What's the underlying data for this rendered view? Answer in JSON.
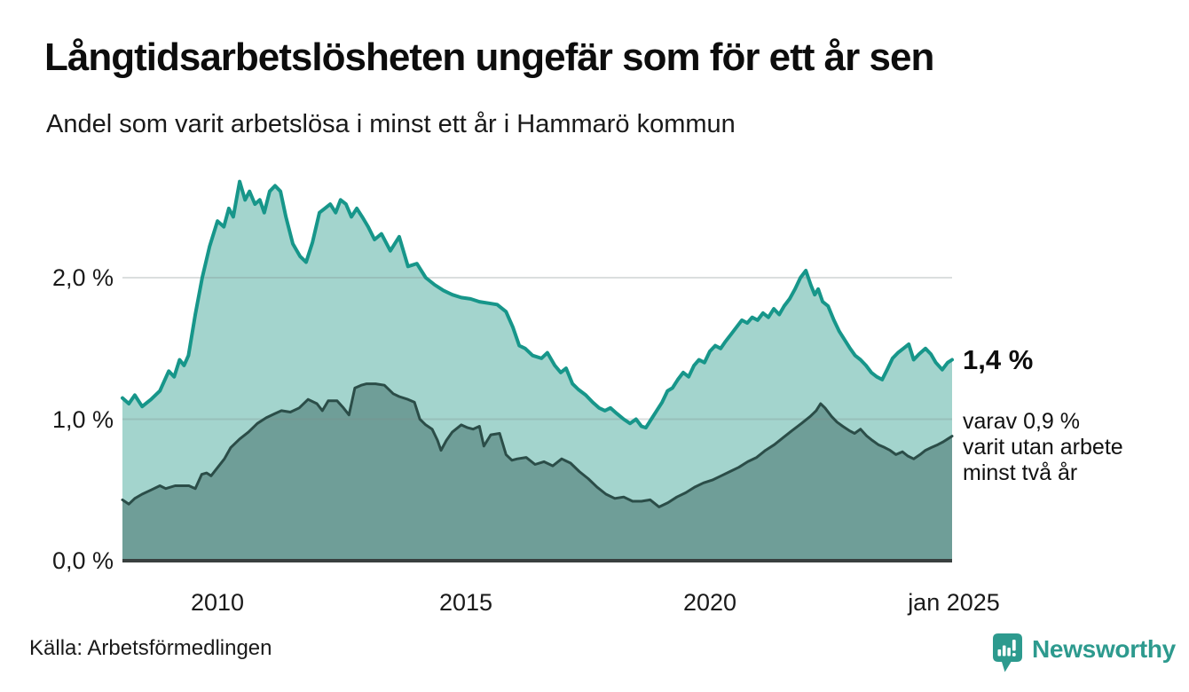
{
  "header": {
    "title": "Långtidsarbetslösheten ungefär som för ett år sen",
    "subtitle": "Andel som varit arbetslösa i minst ett år i Hammarö kommun"
  },
  "footer": {
    "source": "Källa: Arbetsförmedlingen",
    "brand": "Newsworthy"
  },
  "colors": {
    "series1_line": "#17968a",
    "series1_fill": "#a3d4cd",
    "series2_line": "#2b4d48",
    "series2_fill": "#6f9e98",
    "axis_line": "#39403f",
    "gridline": "#e3e3e3",
    "brand_teal": "#2d9a8e",
    "text": "#111111"
  },
  "chart_data": {
    "type": "area",
    "title": "Långtidsarbetslösheten ungefär som för ett år sen",
    "subtitle": "Andel som varit arbetslösa i minst ett år i Hammarö kommun",
    "unit": "%",
    "xlabel": "",
    "ylabel": "",
    "grid": "horizontal",
    "xlim": [
      2008.07,
      2024.92
    ],
    "ylim": [
      0,
      2.74
    ],
    "yticks": [
      {
        "value": 0,
        "label": "0,0 %"
      },
      {
        "value": 1,
        "label": "1,0 %"
      },
      {
        "value": 2,
        "label": "2,0 %"
      }
    ],
    "xticks": [
      {
        "year": 2010,
        "label": "2010"
      },
      {
        "year": 2015,
        "label": "2015"
      },
      {
        "year": 2020,
        "label": "2020"
      },
      {
        "year": 2025,
        "label": "jan 2025"
      }
    ],
    "annotations": {
      "latest_value": "1,4 %",
      "secondary_line1": "varav 0,9 %",
      "secondary_line2": "varit utan arbete",
      "secondary_line3": "minst två år"
    },
    "series": [
      {
        "name": "Andel arbetslösa minst ett år",
        "latest_value_pct": 1.4,
        "line_color": "#17968a",
        "fill_color": "#a3d4cd",
        "points": [
          [
            2008.07,
            1.15
          ],
          [
            2008.2,
            1.11
          ],
          [
            2008.32,
            1.17
          ],
          [
            2008.47,
            1.09
          ],
          [
            2008.65,
            1.14
          ],
          [
            2008.83,
            1.2
          ],
          [
            2009.01,
            1.34
          ],
          [
            2009.12,
            1.3
          ],
          [
            2009.23,
            1.42
          ],
          [
            2009.32,
            1.38
          ],
          [
            2009.41,
            1.45
          ],
          [
            2009.55,
            1.74
          ],
          [
            2009.69,
            2.0
          ],
          [
            2009.84,
            2.22
          ],
          [
            2010.0,
            2.4
          ],
          [
            2010.13,
            2.36
          ],
          [
            2010.23,
            2.49
          ],
          [
            2010.32,
            2.43
          ],
          [
            2010.45,
            2.68
          ],
          [
            2010.56,
            2.55
          ],
          [
            2010.65,
            2.61
          ],
          [
            2010.76,
            2.52
          ],
          [
            2010.86,
            2.55
          ],
          [
            2010.95,
            2.46
          ],
          [
            2011.06,
            2.61
          ],
          [
            2011.17,
            2.65
          ],
          [
            2011.28,
            2.61
          ],
          [
            2011.39,
            2.43
          ],
          [
            2011.53,
            2.24
          ],
          [
            2011.68,
            2.15
          ],
          [
            2011.8,
            2.11
          ],
          [
            2011.93,
            2.25
          ],
          [
            2012.07,
            2.46
          ],
          [
            2012.18,
            2.49
          ],
          [
            2012.29,
            2.52
          ],
          [
            2012.4,
            2.46
          ],
          [
            2012.5,
            2.55
          ],
          [
            2012.61,
            2.52
          ],
          [
            2012.72,
            2.43
          ],
          [
            2012.83,
            2.49
          ],
          [
            2012.94,
            2.43
          ],
          [
            2013.06,
            2.36
          ],
          [
            2013.19,
            2.27
          ],
          [
            2013.33,
            2.31
          ],
          [
            2013.51,
            2.19
          ],
          [
            2013.69,
            2.29
          ],
          [
            2013.87,
            2.08
          ],
          [
            2014.05,
            2.1
          ],
          [
            2014.23,
            2.0
          ],
          [
            2014.41,
            1.95
          ],
          [
            2014.59,
            1.91
          ],
          [
            2014.77,
            1.88
          ],
          [
            2014.95,
            1.86
          ],
          [
            2015.14,
            1.85
          ],
          [
            2015.32,
            1.83
          ],
          [
            2015.5,
            1.82
          ],
          [
            2015.68,
            1.81
          ],
          [
            2015.86,
            1.76
          ],
          [
            2016.0,
            1.65
          ],
          [
            2016.13,
            1.52
          ],
          [
            2016.25,
            1.5
          ],
          [
            2016.4,
            1.45
          ],
          [
            2016.58,
            1.43
          ],
          [
            2016.7,
            1.47
          ],
          [
            2016.85,
            1.38
          ],
          [
            2016.97,
            1.33
          ],
          [
            2017.08,
            1.36
          ],
          [
            2017.21,
            1.25
          ],
          [
            2017.33,
            1.21
          ],
          [
            2017.48,
            1.17
          ],
          [
            2017.62,
            1.12
          ],
          [
            2017.75,
            1.08
          ],
          [
            2017.87,
            1.06
          ],
          [
            2017.98,
            1.08
          ],
          [
            2018.11,
            1.04
          ],
          [
            2018.25,
            1.0
          ],
          [
            2018.38,
            0.97
          ],
          [
            2018.5,
            1.0
          ],
          [
            2018.61,
            0.95
          ],
          [
            2018.7,
            0.94
          ],
          [
            2018.81,
            1.0
          ],
          [
            2018.92,
            1.06
          ],
          [
            2019.03,
            1.12
          ],
          [
            2019.14,
            1.2
          ],
          [
            2019.24,
            1.22
          ],
          [
            2019.35,
            1.28
          ],
          [
            2019.46,
            1.33
          ],
          [
            2019.57,
            1.3
          ],
          [
            2019.68,
            1.38
          ],
          [
            2019.78,
            1.42
          ],
          [
            2019.89,
            1.4
          ],
          [
            2020.0,
            1.48
          ],
          [
            2020.11,
            1.52
          ],
          [
            2020.22,
            1.5
          ],
          [
            2020.32,
            1.55
          ],
          [
            2020.43,
            1.6
          ],
          [
            2020.54,
            1.65
          ],
          [
            2020.65,
            1.7
          ],
          [
            2020.76,
            1.68
          ],
          [
            2020.86,
            1.72
          ],
          [
            2020.97,
            1.7
          ],
          [
            2021.08,
            1.75
          ],
          [
            2021.19,
            1.72
          ],
          [
            2021.3,
            1.78
          ],
          [
            2021.41,
            1.74
          ],
          [
            2021.51,
            1.8
          ],
          [
            2021.62,
            1.85
          ],
          [
            2021.73,
            1.92
          ],
          [
            2021.84,
            2.0
          ],
          [
            2021.95,
            2.05
          ],
          [
            2022.05,
            1.95
          ],
          [
            2022.13,
            1.88
          ],
          [
            2022.2,
            1.92
          ],
          [
            2022.29,
            1.83
          ],
          [
            2022.4,
            1.8
          ],
          [
            2022.52,
            1.7
          ],
          [
            2022.63,
            1.62
          ],
          [
            2022.74,
            1.56
          ],
          [
            2022.85,
            1.5
          ],
          [
            2022.95,
            1.45
          ],
          [
            2023.06,
            1.42
          ],
          [
            2023.17,
            1.38
          ],
          [
            2023.28,
            1.33
          ],
          [
            2023.39,
            1.3
          ],
          [
            2023.5,
            1.28
          ],
          [
            2023.6,
            1.35
          ],
          [
            2023.71,
            1.43
          ],
          [
            2023.82,
            1.47
          ],
          [
            2023.93,
            1.5
          ],
          [
            2024.04,
            1.53
          ],
          [
            2024.14,
            1.42
          ],
          [
            2024.25,
            1.46
          ],
          [
            2024.38,
            1.5
          ],
          [
            2024.49,
            1.46
          ],
          [
            2024.59,
            1.4
          ],
          [
            2024.72,
            1.35
          ],
          [
            2024.83,
            1.4
          ],
          [
            2024.92,
            1.42
          ]
        ]
      },
      {
        "name": "Andel utan arbete minst två år",
        "latest_value_pct": 0.9,
        "line_color": "#2b4d48",
        "fill_color": "#6f9e98",
        "points": [
          [
            2008.07,
            0.43
          ],
          [
            2008.2,
            0.4
          ],
          [
            2008.32,
            0.44
          ],
          [
            2008.47,
            0.47
          ],
          [
            2008.65,
            0.5
          ],
          [
            2008.83,
            0.53
          ],
          [
            2008.95,
            0.51
          ],
          [
            2009.14,
            0.53
          ],
          [
            2009.32,
            0.53
          ],
          [
            2009.42,
            0.53
          ],
          [
            2009.55,
            0.51
          ],
          [
            2009.68,
            0.61
          ],
          [
            2009.78,
            0.62
          ],
          [
            2009.87,
            0.6
          ],
          [
            2009.96,
            0.64
          ],
          [
            2010.14,
            0.72
          ],
          [
            2010.27,
            0.8
          ],
          [
            2010.45,
            0.86
          ],
          [
            2010.63,
            0.91
          ],
          [
            2010.81,
            0.97
          ],
          [
            2010.99,
            1.01
          ],
          [
            2011.17,
            1.04
          ],
          [
            2011.3,
            1.06
          ],
          [
            2011.48,
            1.05
          ],
          [
            2011.66,
            1.08
          ],
          [
            2011.84,
            1.14
          ],
          [
            2012.02,
            1.11
          ],
          [
            2012.13,
            1.06
          ],
          [
            2012.25,
            1.13
          ],
          [
            2012.43,
            1.13
          ],
          [
            2012.56,
            1.08
          ],
          [
            2012.67,
            1.03
          ],
          [
            2012.79,
            1.22
          ],
          [
            2012.92,
            1.24
          ],
          [
            2013.03,
            1.25
          ],
          [
            2013.21,
            1.25
          ],
          [
            2013.39,
            1.24
          ],
          [
            2013.57,
            1.18
          ],
          [
            2013.69,
            1.16
          ],
          [
            2013.87,
            1.14
          ],
          [
            2014.0,
            1.12
          ],
          [
            2014.11,
            1.0
          ],
          [
            2014.23,
            0.96
          ],
          [
            2014.36,
            0.93
          ],
          [
            2014.47,
            0.85
          ],
          [
            2014.54,
            0.78
          ],
          [
            2014.65,
            0.85
          ],
          [
            2014.77,
            0.91
          ],
          [
            2014.95,
            0.96
          ],
          [
            2015.08,
            0.94
          ],
          [
            2015.19,
            0.93
          ],
          [
            2015.32,
            0.95
          ],
          [
            2015.41,
            0.81
          ],
          [
            2015.55,
            0.89
          ],
          [
            2015.73,
            0.9
          ],
          [
            2015.86,
            0.75
          ],
          [
            2015.98,
            0.71
          ],
          [
            2016.09,
            0.72
          ],
          [
            2016.27,
            0.73
          ],
          [
            2016.45,
            0.68
          ],
          [
            2016.63,
            0.7
          ],
          [
            2016.81,
            0.67
          ],
          [
            2016.99,
            0.72
          ],
          [
            2017.17,
            0.69
          ],
          [
            2017.35,
            0.63
          ],
          [
            2017.53,
            0.58
          ],
          [
            2017.71,
            0.52
          ],
          [
            2017.89,
            0.47
          ],
          [
            2018.07,
            0.44
          ],
          [
            2018.25,
            0.45
          ],
          [
            2018.43,
            0.42
          ],
          [
            2018.61,
            0.42
          ],
          [
            2018.79,
            0.43
          ],
          [
            2018.97,
            0.38
          ],
          [
            2019.15,
            0.41
          ],
          [
            2019.33,
            0.45
          ],
          [
            2019.51,
            0.48
          ],
          [
            2019.69,
            0.52
          ],
          [
            2019.87,
            0.55
          ],
          [
            2020.05,
            0.57
          ],
          [
            2020.23,
            0.6
          ],
          [
            2020.41,
            0.63
          ],
          [
            2020.59,
            0.66
          ],
          [
            2020.77,
            0.7
          ],
          [
            2020.95,
            0.73
          ],
          [
            2021.13,
            0.78
          ],
          [
            2021.31,
            0.82
          ],
          [
            2021.49,
            0.87
          ],
          [
            2021.67,
            0.92
          ],
          [
            2021.86,
            0.97
          ],
          [
            2022.04,
            1.02
          ],
          [
            2022.16,
            1.06
          ],
          [
            2022.25,
            1.11
          ],
          [
            2022.34,
            1.08
          ],
          [
            2022.47,
            1.02
          ],
          [
            2022.58,
            0.98
          ],
          [
            2022.7,
            0.95
          ],
          [
            2022.83,
            0.92
          ],
          [
            2022.94,
            0.9
          ],
          [
            2023.06,
            0.93
          ],
          [
            2023.19,
            0.88
          ],
          [
            2023.3,
            0.85
          ],
          [
            2023.42,
            0.82
          ],
          [
            2023.55,
            0.8
          ],
          [
            2023.66,
            0.78
          ],
          [
            2023.78,
            0.75
          ],
          [
            2023.91,
            0.77
          ],
          [
            2024.02,
            0.74
          ],
          [
            2024.14,
            0.72
          ],
          [
            2024.27,
            0.75
          ],
          [
            2024.38,
            0.78
          ],
          [
            2024.5,
            0.8
          ],
          [
            2024.63,
            0.82
          ],
          [
            2024.74,
            0.84
          ],
          [
            2024.83,
            0.86
          ],
          [
            2024.92,
            0.88
          ]
        ]
      }
    ]
  }
}
